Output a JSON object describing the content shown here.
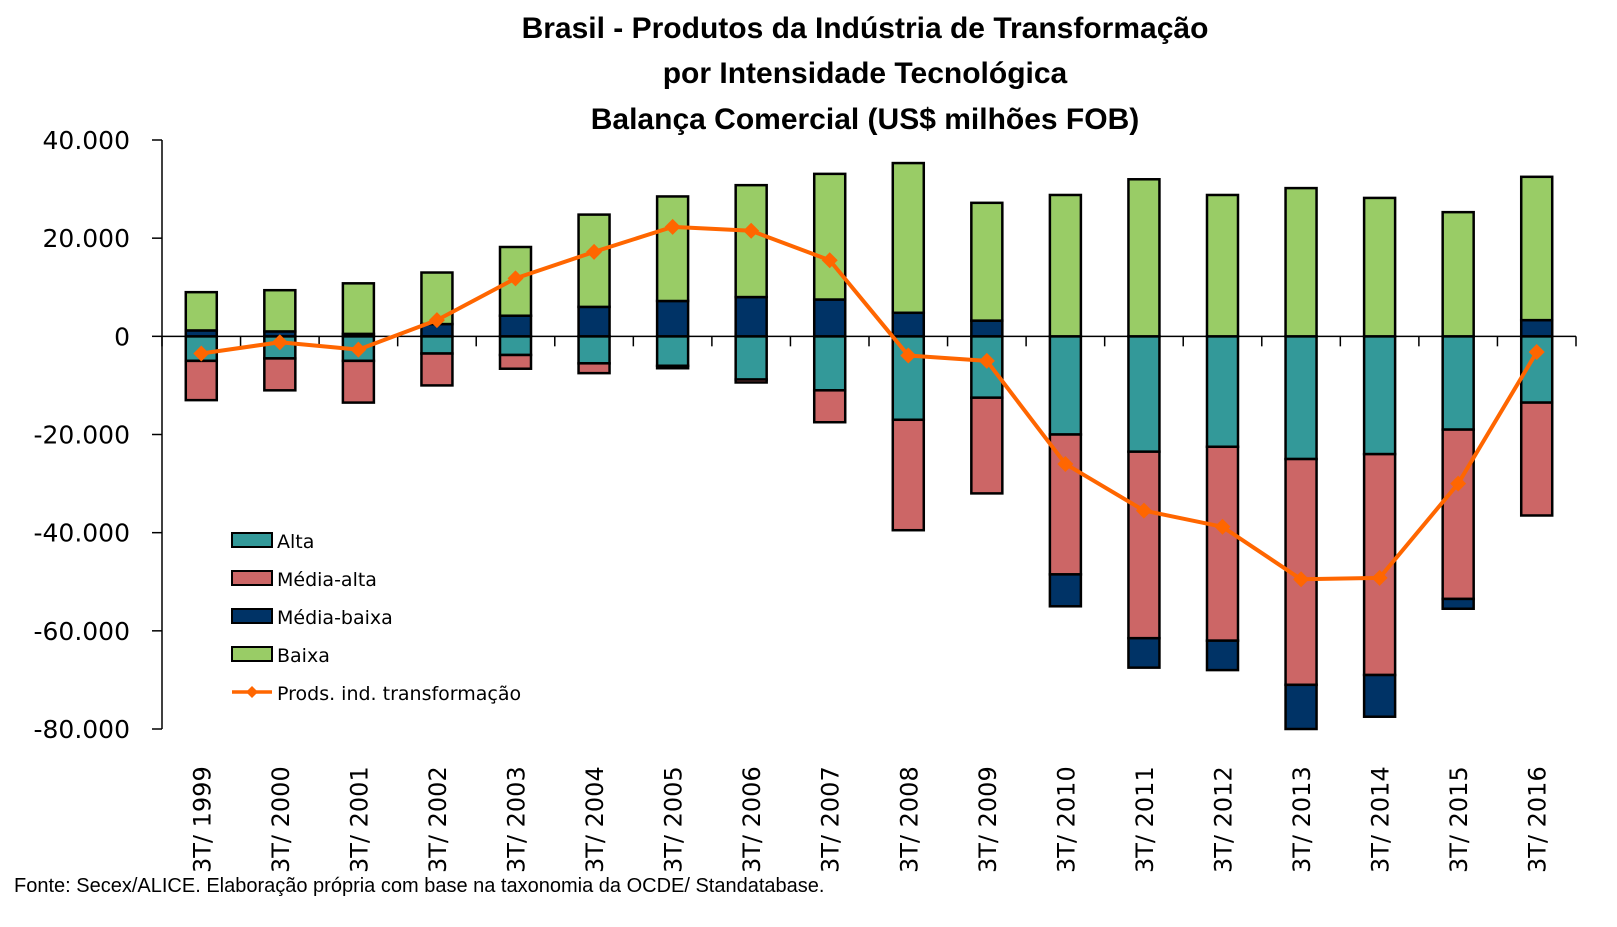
{
  "chart_data": {
    "type": "bar",
    "subtype": "stacked-bar-with-line",
    "title": [
      "Brasil - Produtos da Indústria de Transformação",
      "por Intensidade Tecnológica",
      "Balança Comercial (US$ milhões FOB)"
    ],
    "xlabel": "",
    "ylabel": "",
    "ylim": [
      -80000,
      40000
    ],
    "yticks": [
      40000,
      20000,
      0,
      -20000,
      -40000,
      -60000,
      -80000
    ],
    "ytick_labels": [
      "40.000",
      "20.000",
      "0",
      "-20.000",
      "-40.000",
      "-60.000",
      "-80.000"
    ],
    "categories": [
      "3T/ 1999",
      "3T/ 2000",
      "3T/ 2001",
      "3T/ 2002",
      "3T/ 2003",
      "3T/ 2004",
      "3T/ 2005",
      "3T/ 2006",
      "3T/ 2007",
      "3T/ 2008",
      "3T/ 2009",
      "3T/ 2010",
      "3T/ 2011",
      "3T/ 2012",
      "3T/ 2013",
      "3T/ 2014",
      "3T/ 2015",
      "3T/ 2016"
    ],
    "series": [
      {
        "name": "Alta",
        "kind": "bar",
        "color": "#339999",
        "values": [
          -5000,
          -4500,
          -5000,
          -3500,
          -3800,
          -5500,
          -6000,
          -8800,
          -11000,
          -17000,
          -12500,
          -20000,
          -23500,
          -22500,
          -25000,
          -24000,
          -19000,
          -13500
        ]
      },
      {
        "name": "Média-alta",
        "kind": "bar",
        "color": "#CC6666",
        "values": [
          -8000,
          -6500,
          -8500,
          -6500,
          -2800,
          -2000,
          -500,
          -600,
          -6500,
          -22500,
          -19500,
          -28500,
          -38000,
          -39500,
          -46000,
          -45000,
          -34500,
          -23000
        ]
      },
      {
        "name": "Média-baixa",
        "kind": "bar",
        "color": "#003366",
        "values": [
          1200,
          1000,
          500,
          2500,
          4200,
          6000,
          7200,
          8000,
          7500,
          4800,
          3200,
          -6500,
          -6000,
          -6000,
          -9000,
          -8500,
          -2000,
          3300
        ]
      },
      {
        "name": "Baixa",
        "kind": "bar",
        "color": "#99CC66",
        "values": [
          7800,
          8400,
          10300,
          10500,
          14000,
          18800,
          21300,
          22800,
          25600,
          30500,
          24000,
          28800,
          32000,
          28800,
          30200,
          28200,
          25300,
          29200
        ]
      },
      {
        "name": "Prods. ind. transformação",
        "kind": "line",
        "color": "#FF6600",
        "marker": "diamond",
        "values": [
          -3500,
          -1200,
          -2700,
          3300,
          11800,
          17200,
          22300,
          21500,
          15500,
          -3900,
          -5000,
          -26000,
          -35500,
          -38800,
          -49500,
          -49200,
          -30000,
          -3200
        ]
      }
    ],
    "legend": {
      "position": "bottom-left-inside",
      "entries": [
        "Alta",
        "Média-alta",
        "Média-baixa",
        "Baixa",
        "Prods. ind. transformação"
      ]
    },
    "grid": false,
    "source": "Fonte: Secex/ALICE. Elaboração própria com base na taxonomia da OCDE/ Standatabase."
  }
}
